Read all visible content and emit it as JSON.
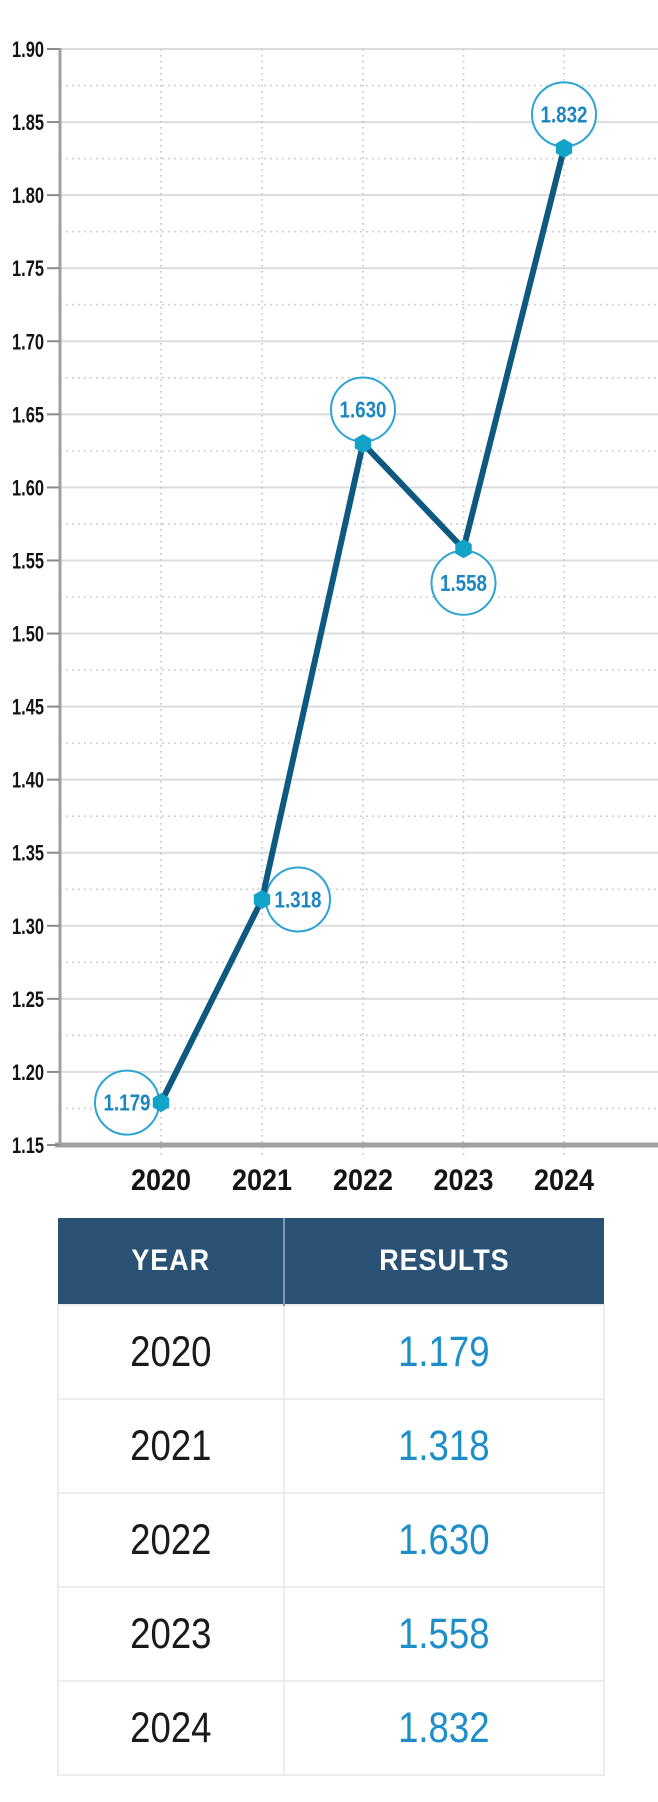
{
  "chart_data": {
    "type": "line",
    "title": "",
    "categories": [
      "2020",
      "2021",
      "2022",
      "2023",
      "2024"
    ],
    "series": [
      {
        "name": "Results",
        "values": [
          1.179,
          1.318,
          1.63,
          1.558,
          1.832
        ]
      }
    ],
    "point_labels": [
      "1.179",
      "1.318",
      "1.630",
      "1.558",
      "1.832"
    ],
    "point_label_positions": [
      "left",
      "right",
      "above",
      "below",
      "above"
    ],
    "xlabel": "",
    "ylabel": "",
    "ylim": [
      1.15,
      1.9
    ],
    "y_major_step": 0.05,
    "y_minor_step": 0.025,
    "y_tick_format": 2,
    "grid": true,
    "legend": false,
    "colors": {
      "line": "#0d5980",
      "marker": "#13a3c9",
      "bubble_border": "#2da4d4",
      "bubble_fill": "#ffffff",
      "bubble_text": "#1c86c0",
      "axis": "#a0a0a0",
      "grid_major": "#dcdcdc",
      "grid_minor": "#c4c4c4",
      "tick": "#8a8a8a",
      "tick_label": "#141414"
    }
  },
  "table": {
    "headers": [
      "YEAR",
      "RESULTS"
    ],
    "rows": [
      {
        "year": "2020",
        "result": "1.179"
      },
      {
        "year": "2021",
        "result": "1.318"
      },
      {
        "year": "2022",
        "result": "1.630"
      },
      {
        "year": "2023",
        "result": "1.558"
      },
      {
        "year": "2024",
        "result": "1.832"
      }
    ],
    "header_bg": "#2a5274",
    "header_text_color": "#ffffff",
    "year_text_color": "#1a1a1a",
    "result_text_color": "#1e8ec9"
  }
}
